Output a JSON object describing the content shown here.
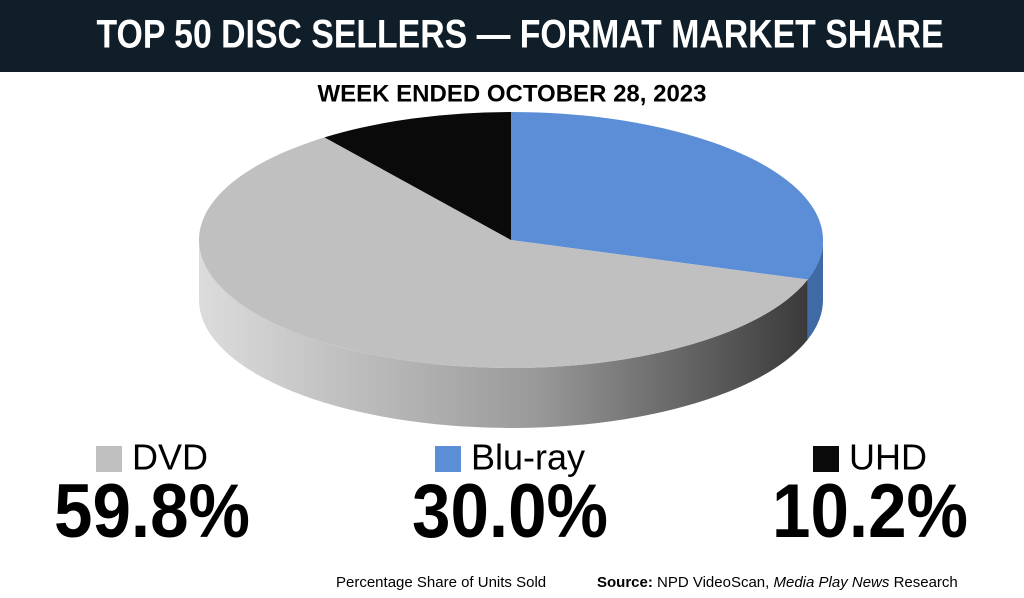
{
  "chart_data": {
    "type": "pie",
    "title": "TOP 50 DISC SELLERS — FORMAT MARKET SHARE",
    "subtitle": "WEEK ENDED OCTOBER 28, 2023",
    "categories": [
      "DVD",
      "Blu-ray",
      "UHD"
    ],
    "values": [
      59.8,
      30.0,
      10.2
    ],
    "value_labels": [
      "59.8%",
      "30.0%",
      "10.2%"
    ],
    "colors": [
      "#c0c0c0",
      "#5b8ed6",
      "#0a0a0a"
    ],
    "note": "Percentage Share of Units Sold",
    "source": [
      "Source:",
      "NPD VideoScan,",
      "Media Play News",
      "Research"
    ]
  }
}
